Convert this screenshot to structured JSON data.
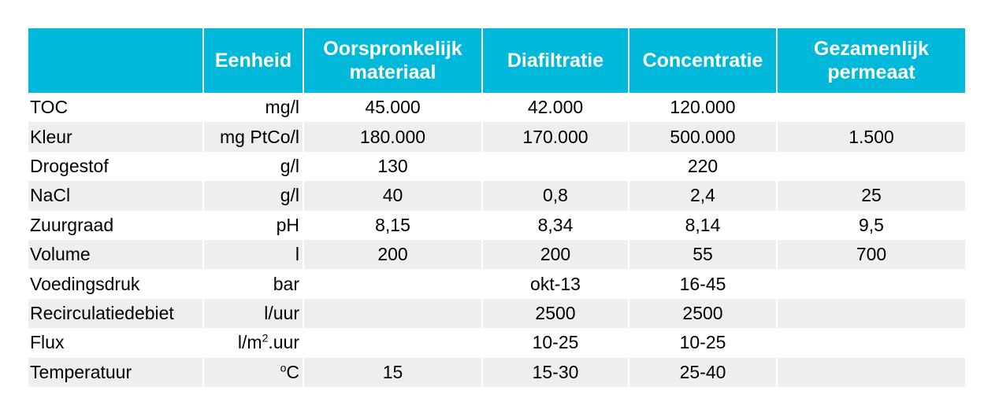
{
  "headers": [
    "",
    "Eenheid",
    "Oorspronkelijk materiaal",
    "Diafiltratie",
    "Concentratie",
    "Gezamenlijk permeaat"
  ],
  "rows": [
    {
      "param": "TOC",
      "unit": "mg/l",
      "orig": "45.000",
      "dia": "42.000",
      "conc": "120.000",
      "perm": ""
    },
    {
      "param": "Kleur",
      "unit": "mg PtCo/l",
      "orig": "180.000",
      "dia": "170.000",
      "conc": "500.000",
      "perm": "1.500"
    },
    {
      "param": "Drogestof",
      "unit": "g/l",
      "orig": "130",
      "dia": "",
      "conc": "220",
      "perm": ""
    },
    {
      "param": "NaCl",
      "unit": "g/l",
      "orig": "40",
      "dia": "0,8",
      "conc": "2,4",
      "perm": "25"
    },
    {
      "param": "Zuurgraad",
      "unit": "pH",
      "orig": "8,15",
      "dia": "8,34",
      "conc": "8,14",
      "perm": "9,5"
    },
    {
      "param": "Volume",
      "unit": "l",
      "orig": "200",
      "dia": "200",
      "conc": "55",
      "perm": "700"
    },
    {
      "param": "Voedingsdruk",
      "unit": "bar",
      "orig": "",
      "dia": "okt-13",
      "conc": "16-45",
      "perm": ""
    },
    {
      "param": "Recirculatiedebiet",
      "unit": "l/uur",
      "orig": "",
      "dia": "2500",
      "conc": "2500",
      "perm": ""
    },
    {
      "param": "Flux",
      "unit_pre": "l/m",
      "unit_sup": "2",
      "unit_post": ".uur",
      "orig": "",
      "dia": "10-25",
      "conc": "10-25",
      "perm": ""
    },
    {
      "param": "Temperatuur",
      "unit_pre": "",
      "unit_sup": "o",
      "unit_post": "C",
      "orig": "15",
      "dia": "15-30",
      "conc": "25-40",
      "perm": ""
    }
  ],
  "colors": {
    "header_bg": "#00b8d9",
    "header_text": "#ffffff",
    "stripe": "#eeeeee"
  }
}
